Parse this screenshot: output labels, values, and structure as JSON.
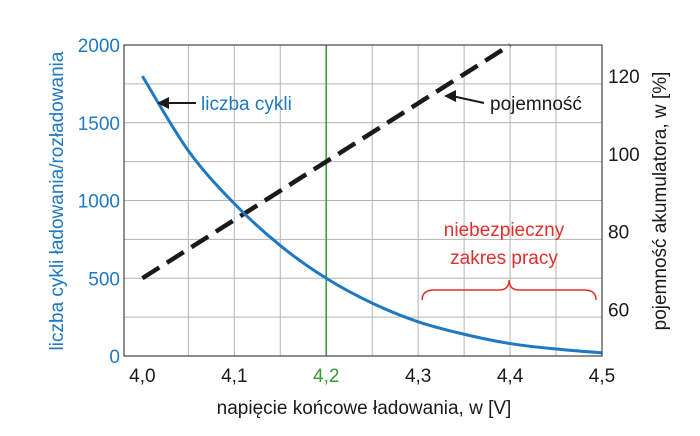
{
  "chart_data": {
    "type": "line",
    "x": [
      4.0,
      4.05,
      4.1,
      4.15,
      4.2,
      4.25,
      4.3,
      4.35,
      4.4,
      4.45,
      4.5
    ],
    "xlim": [
      3.98,
      4.5
    ],
    "x_ticks": [
      "4,0",
      "4,1",
      "4,2",
      "4,3",
      "4,4",
      "4,5"
    ],
    "xlabel": "napięcie końcowe ładowania, w [V]",
    "y_left": {
      "label": "liczba cykli ładowania/rozładowania",
      "lim": [
        0,
        2000
      ],
      "ticks": [
        "0",
        "500",
        "1000",
        "1500",
        "2000"
      ],
      "color": "#1f78c2"
    },
    "y_right": {
      "label": "pojemność akumulatora, w [%]",
      "lim": [
        48,
        128
      ],
      "ticks": [
        "60",
        "80",
        "100",
        "120"
      ]
    },
    "series": [
      {
        "name": "liczba cykli",
        "axis": "left",
        "color": "#1f78c2",
        "style": "solid",
        "values": [
          1800,
          1320,
          980,
          710,
          500,
          340,
          220,
          140,
          80,
          45,
          20
        ]
      },
      {
        "name": "pojemność",
        "axis": "right",
        "color": "#1a1a1a",
        "style": "dashed",
        "x": [
          4.0,
          4.4
        ],
        "values": [
          68,
          128
        ]
      }
    ],
    "reference_line": {
      "x": 4.2,
      "color": "#3a9a3a",
      "tick_label": "4,2"
    },
    "annotations": {
      "cycles_label": "liczba cykli",
      "capacity_label": "pojemność",
      "danger_line1": "niebezpieczny",
      "danger_line2": "zakres pracy",
      "danger_range": [
        4.3,
        4.5
      ],
      "danger_color": "#e0302a"
    },
    "grid": true
  }
}
